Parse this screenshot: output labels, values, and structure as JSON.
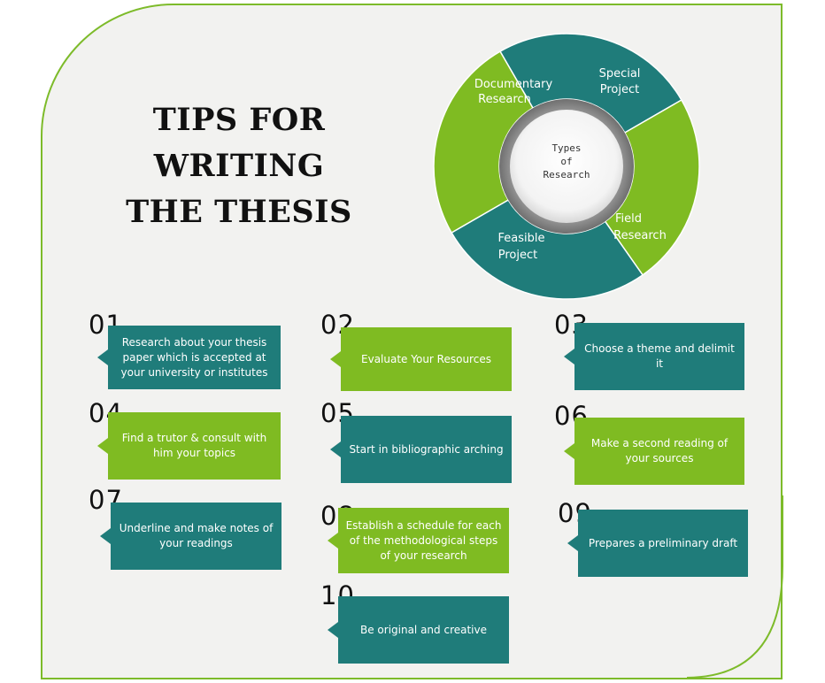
{
  "title_lines": [
    "TIPS FOR",
    "WRITING",
    "THE THESIS"
  ],
  "colors": {
    "teal": "#1f7c7a",
    "green": "#7fbb22",
    "border": "#7dbb2a"
  },
  "wheel": {
    "center_lines": [
      "Types",
      "of",
      "Research"
    ],
    "segments": [
      {
        "label_lines": [
          "Documentary",
          "Research"
        ],
        "color": "teal"
      },
      {
        "label_lines": [
          "Special",
          "Project"
        ],
        "color": "green"
      },
      {
        "label_lines": [
          "Field",
          "Research"
        ],
        "color": "teal"
      },
      {
        "label_lines": [
          "Feasible",
          "Project"
        ],
        "color": "green"
      }
    ]
  },
  "tips": [
    {
      "num": "01.",
      "text": "Research about your thesis paper which is accepted at your university or institutes",
      "color": "teal"
    },
    {
      "num": "02.",
      "text": "Evaluate Your Resources",
      "color": "green"
    },
    {
      "num": "03.",
      "text": "Choose a theme and delimit it",
      "color": "teal"
    },
    {
      "num": "04.",
      "text": "Find a trutor & consult with him your topics",
      "color": "green"
    },
    {
      "num": "05.",
      "text": "Start in bibliographic arching",
      "color": "teal"
    },
    {
      "num": "06.",
      "text": "Make a second reading of your sources",
      "color": "green"
    },
    {
      "num": "07.",
      "text": "Underline and make notes of your readings",
      "color": "teal"
    },
    {
      "num": "08.",
      "text": "Establish a schedule for each of the methodological steps of your research",
      "color": "green"
    },
    {
      "num": "09.",
      "text": "Prepares a preliminary draft",
      "color": "teal"
    },
    {
      "num": "10.",
      "text": "Be original and creative",
      "color": "teal"
    }
  ]
}
